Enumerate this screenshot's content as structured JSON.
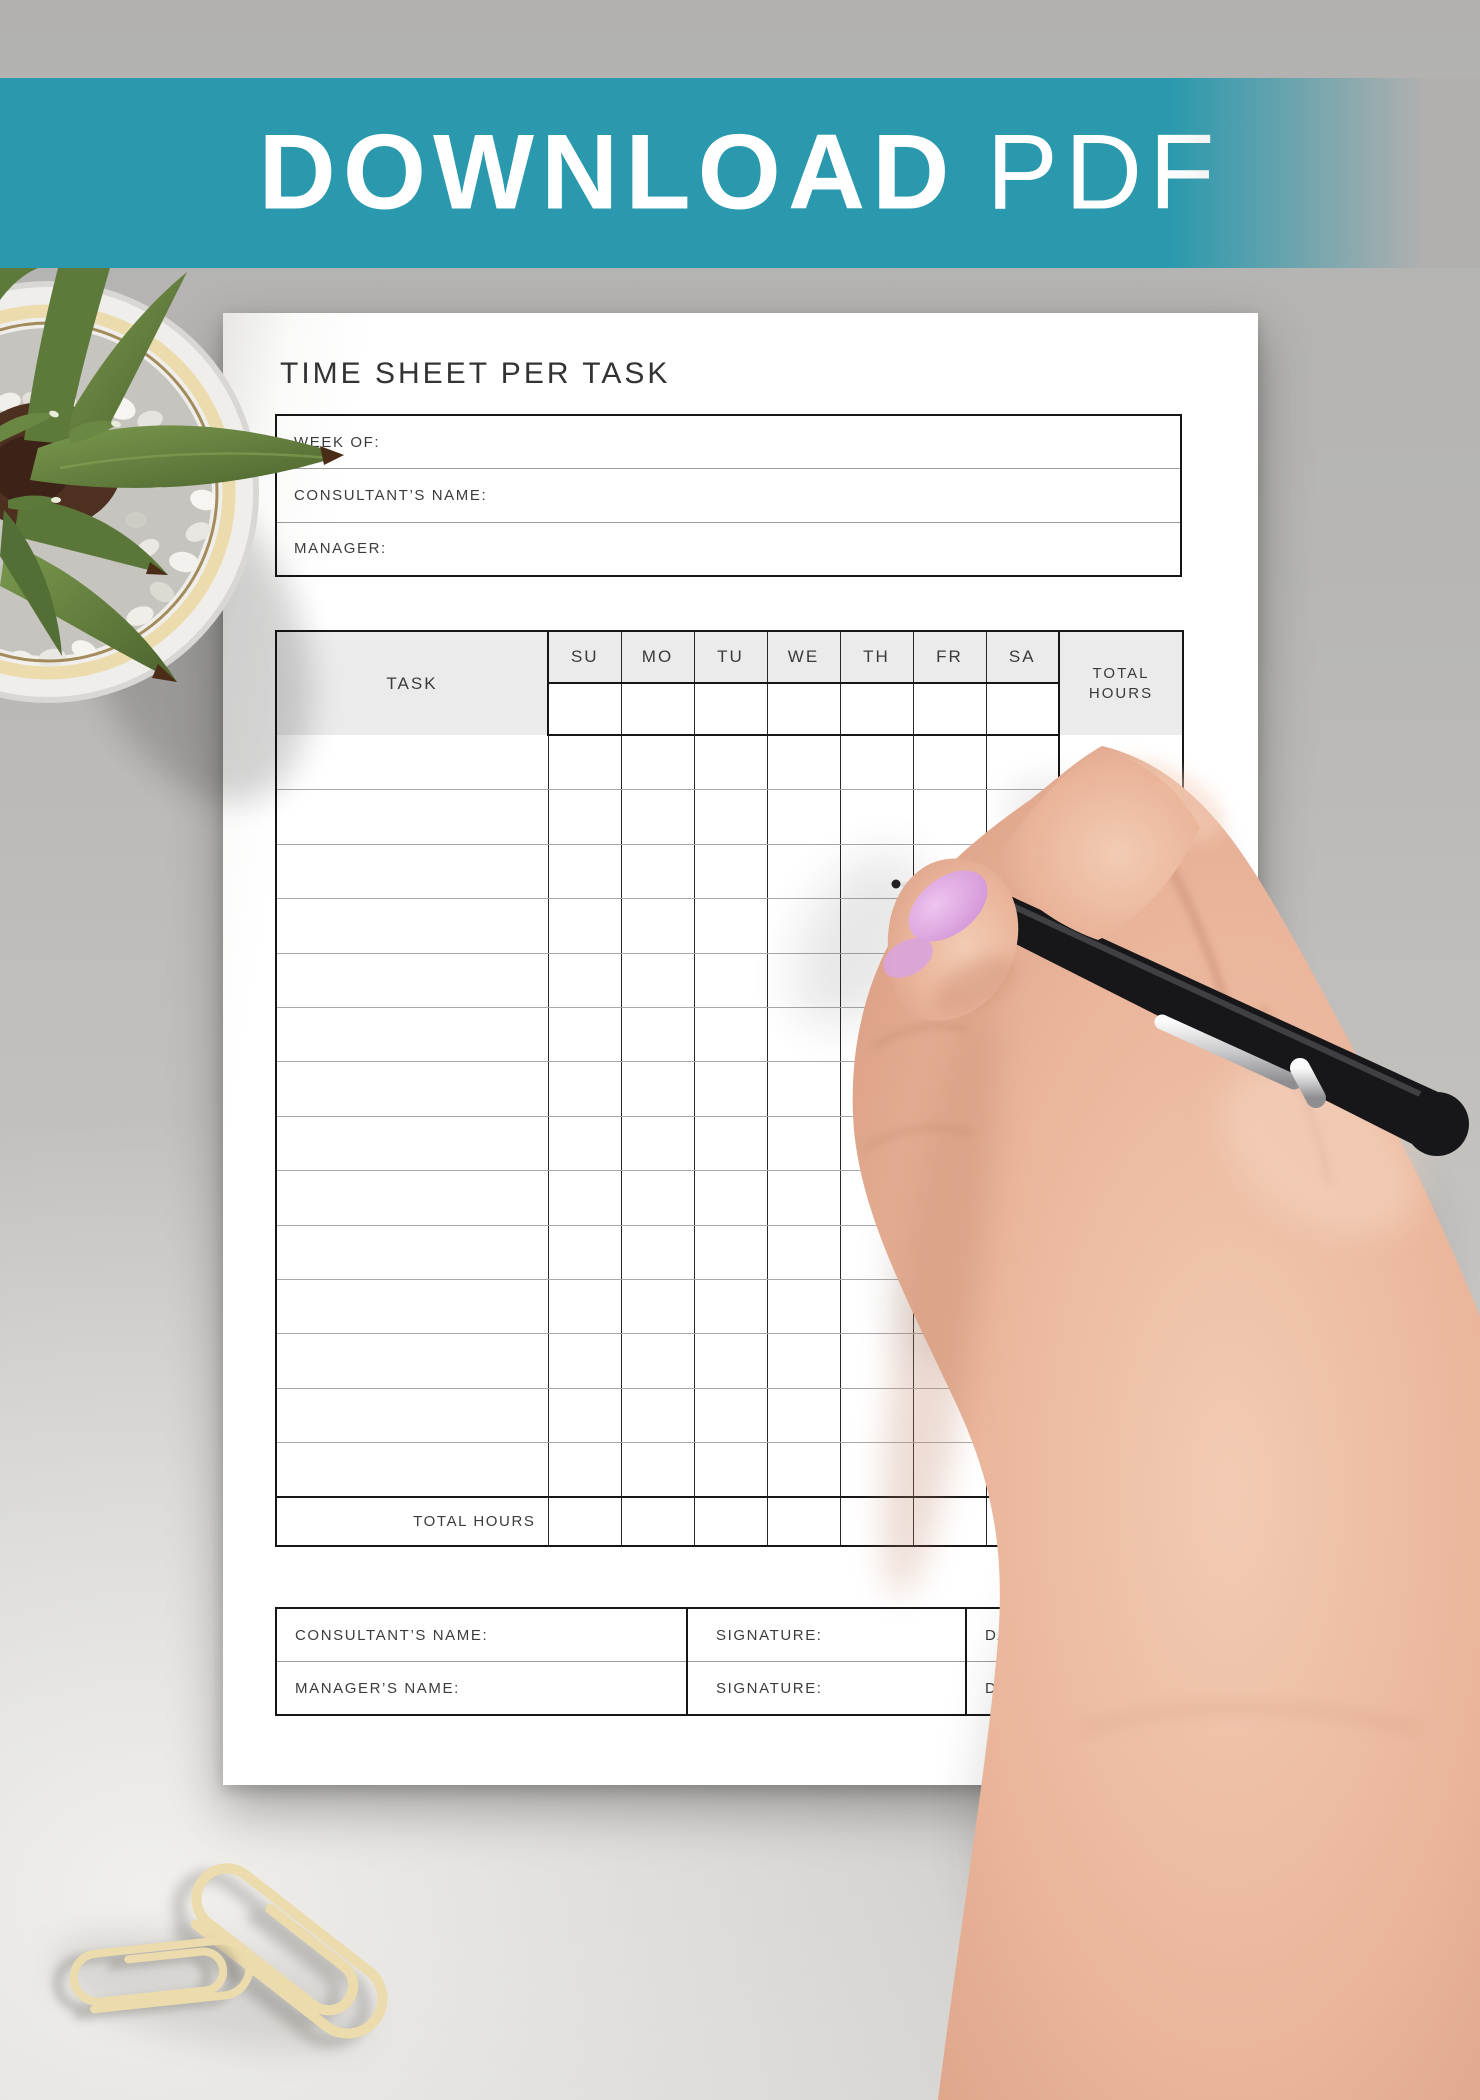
{
  "banner": {
    "label": "DOWNLOAD PDF",
    "word_bold": "DOWNLOAD",
    "word_light": "PDF",
    "background": "#2a99ad"
  },
  "page": {
    "title": "TIME SHEET PER TASK",
    "header_fields": [
      {
        "label": "WEEK OF:"
      },
      {
        "label": "CONSULTANT’S NAME:"
      },
      {
        "label": "MANAGER:"
      }
    ],
    "table": {
      "task_header": "TASK",
      "day_headers": [
        "SU",
        "MO",
        "TU",
        "WE",
        "TH",
        "FR",
        "SA"
      ],
      "total_header": [
        "TOTAL",
        "HOURS"
      ],
      "data_row_count": 14,
      "footer_label": "TOTAL HOURS"
    },
    "signatures": [
      {
        "name_label": "CONSULTANT’S NAME:",
        "signature_label": "SIGNATURE:",
        "date_label": "DATE:"
      },
      {
        "name_label": "MANAGER’S NAME:",
        "signature_label": "SIGNATURE:",
        "date_label": "DATE:"
      }
    ]
  },
  "colors": {
    "accent_teal": "#2a99ad",
    "paper": "#ffffff",
    "table_header_bg": "#ebebeb",
    "grid_dark": "#272727",
    "grid_light": "#a9a9a9",
    "text": "#3a3a3a",
    "paperclip_gold": "#bb9257",
    "nail_pink": "#dcaade",
    "pen_black": "#17171a"
  },
  "photo_elements": {
    "plant": "potted succulent top view",
    "paperclips": "two gold paperclips",
    "hand": "hand holding black pen"
  }
}
